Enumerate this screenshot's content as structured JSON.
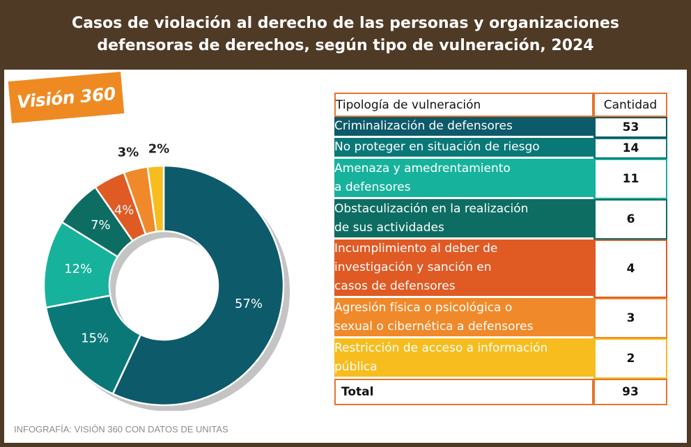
{
  "header": {
    "title_line1": "Casos de violación al derecho de las personas y organizaciones",
    "title_line2": "defensoras de derechos, según tipo de vulneración, 2024"
  },
  "logo": {
    "text": "Visión 360"
  },
  "table": {
    "col_type": "Tipología de vulneración",
    "col_qty": "Cantidad",
    "total_label": "Total",
    "total_value": "93"
  },
  "footer": {
    "credit": "INFOGRAFÍA: VISIÓN 360 CON DATOS DE UNITAS"
  },
  "chart_data": {
    "type": "pie",
    "title": "Casos de violación al derecho de las personas y organizaciones defensoras de derechos, según tipo de vulneración, 2024",
    "total": 93,
    "slices": [
      {
        "label_lines": [
          "Criminalización de defensores"
        ],
        "value": 53,
        "pct_label": "57%",
        "color": "#0d5a6a"
      },
      {
        "label_lines": [
          "No proteger en situación de riesgo"
        ],
        "value": 14,
        "pct_label": "15%",
        "color": "#0b7878"
      },
      {
        "label_lines": [
          "Amenaza y amedrentamiento",
          "a defensores"
        ],
        "value": 11,
        "pct_label": "12%",
        "color": "#17b29c"
      },
      {
        "label_lines": [
          "Obstaculización en la realización",
          "de sus actividades"
        ],
        "value": 6,
        "pct_label": "7%",
        "color": "#0e6d62"
      },
      {
        "label_lines": [
          "Incumplimiento al deber de",
          "investigación y sanción en",
          "casos de defensores"
        ],
        "value": 4,
        "pct_label": "4%",
        "color": "#e05a24"
      },
      {
        "label_lines": [
          "Agresión física o psicológica o",
          "sexual o cibernética a defensores"
        ],
        "value": 3,
        "pct_label": "3%",
        "color": "#f0892a"
      },
      {
        "label_lines": [
          "Restricción de acceso a información",
          "pública"
        ],
        "value": 2,
        "pct_label": "2%",
        "color": "#f7bd1e"
      }
    ]
  }
}
